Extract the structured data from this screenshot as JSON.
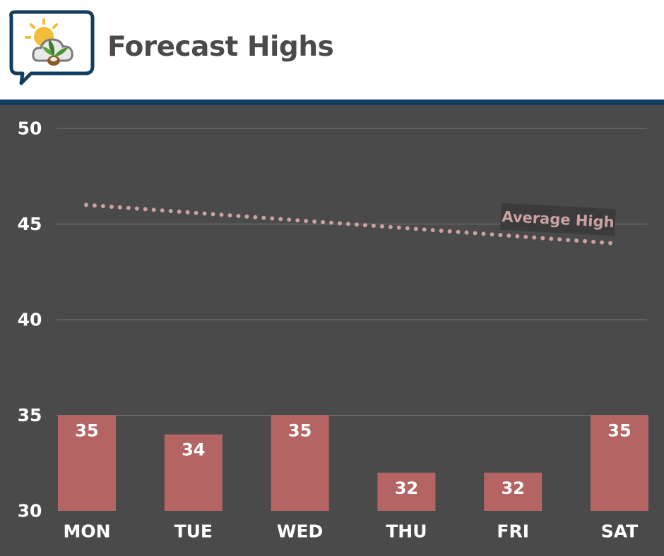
{
  "header": {
    "title": "Forecast Highs",
    "logo_icon": "weather-sun-cloud-leaf-logo"
  },
  "chart_data": {
    "type": "bar",
    "categories": [
      "MON",
      "TUE",
      "WED",
      "THU",
      "FRI",
      "SAT"
    ],
    "series": [
      {
        "values": [
          35,
          34,
          35,
          32,
          32,
          35
        ],
        "color": "#b56464"
      }
    ],
    "average_line": {
      "label": "Average High",
      "start": 46,
      "end": 44,
      "color": "#c9a1a1",
      "style": "dotted"
    },
    "ylim": [
      30,
      50
    ],
    "yticks": [
      30,
      35,
      40,
      45,
      50
    ],
    "grid": true,
    "background": "#4a4a4a"
  }
}
